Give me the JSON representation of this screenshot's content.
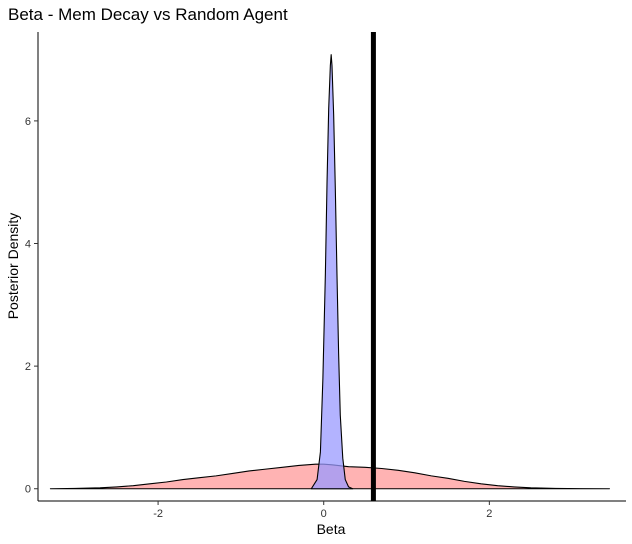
{
  "chart_data": {
    "type": "area",
    "title": "Beta - Mem Decay vs Random Agent",
    "xlabel": "Beta",
    "ylabel": "Posterior Density",
    "xlim": [
      -3.45,
      3.65
    ],
    "ylim": [
      -0.2,
      7.45
    ],
    "x_ticks": [
      -2,
      0,
      2
    ],
    "x_tick_labels": [
      "-2",
      "0",
      "2"
    ],
    "y_ticks": [
      0,
      2,
      4,
      6
    ],
    "y_tick_labels": [
      "0",
      "2",
      "4",
      "6"
    ],
    "grid": false,
    "legend": "none",
    "reference_line": {
      "x": 0.6,
      "color": "#000000"
    },
    "series": [
      {
        "fill": "#ff9999",
        "fill_opacity": 0.75,
        "stroke": "#000000",
        "x": [
          -3.3,
          -3.0,
          -2.7,
          -2.5,
          -2.3,
          -2.1,
          -1.9,
          -1.7,
          -1.5,
          -1.3,
          -1.1,
          -0.9,
          -0.7,
          -0.5,
          -0.3,
          -0.1,
          0.0,
          0.1,
          0.3,
          0.5,
          0.7,
          0.9,
          1.1,
          1.3,
          1.5,
          1.7,
          1.9,
          2.1,
          2.3,
          2.5,
          2.8,
          3.1,
          3.45
        ],
        "y": [
          0.0,
          0.005,
          0.015,
          0.03,
          0.05,
          0.08,
          0.11,
          0.15,
          0.18,
          0.21,
          0.25,
          0.29,
          0.32,
          0.35,
          0.38,
          0.4,
          0.4,
          0.39,
          0.36,
          0.35,
          0.33,
          0.3,
          0.26,
          0.21,
          0.17,
          0.12,
          0.08,
          0.05,
          0.03,
          0.015,
          0.005,
          0.002,
          0.0
        ]
      },
      {
        "fill": "#9999ff",
        "fill_opacity": 0.75,
        "stroke": "#000000",
        "x": [
          -0.15,
          -0.08,
          -0.04,
          -0.01,
          0.02,
          0.04,
          0.06,
          0.08,
          0.09,
          0.1,
          0.12,
          0.14,
          0.16,
          0.18,
          0.2,
          0.23,
          0.26,
          0.3,
          0.35
        ],
        "y": [
          0.0,
          0.15,
          0.6,
          1.8,
          3.5,
          5.0,
          6.2,
          6.9,
          7.08,
          6.9,
          6.1,
          4.9,
          3.5,
          2.2,
          1.2,
          0.5,
          0.15,
          0.03,
          0.0
        ]
      }
    ]
  }
}
